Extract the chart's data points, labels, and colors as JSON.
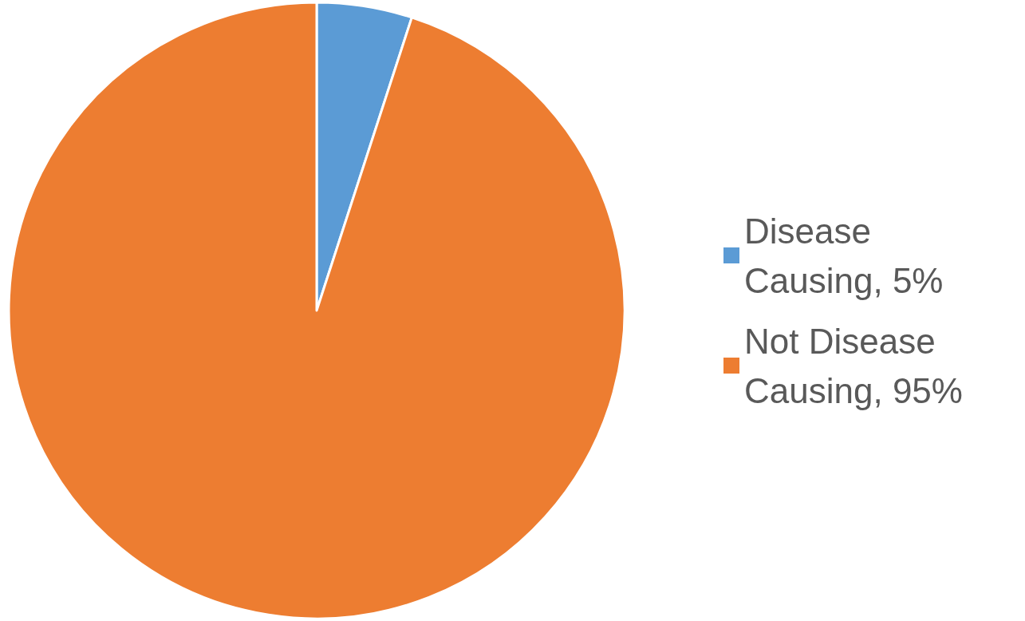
{
  "chart_data": {
    "type": "pie",
    "categories": [
      "Disease Causing, 5%",
      "Not Disease Causing, 95%"
    ],
    "values": [
      5,
      95
    ],
    "colors": [
      "#5b9bd5",
      "#ed7d31"
    ],
    "legend": "right"
  }
}
